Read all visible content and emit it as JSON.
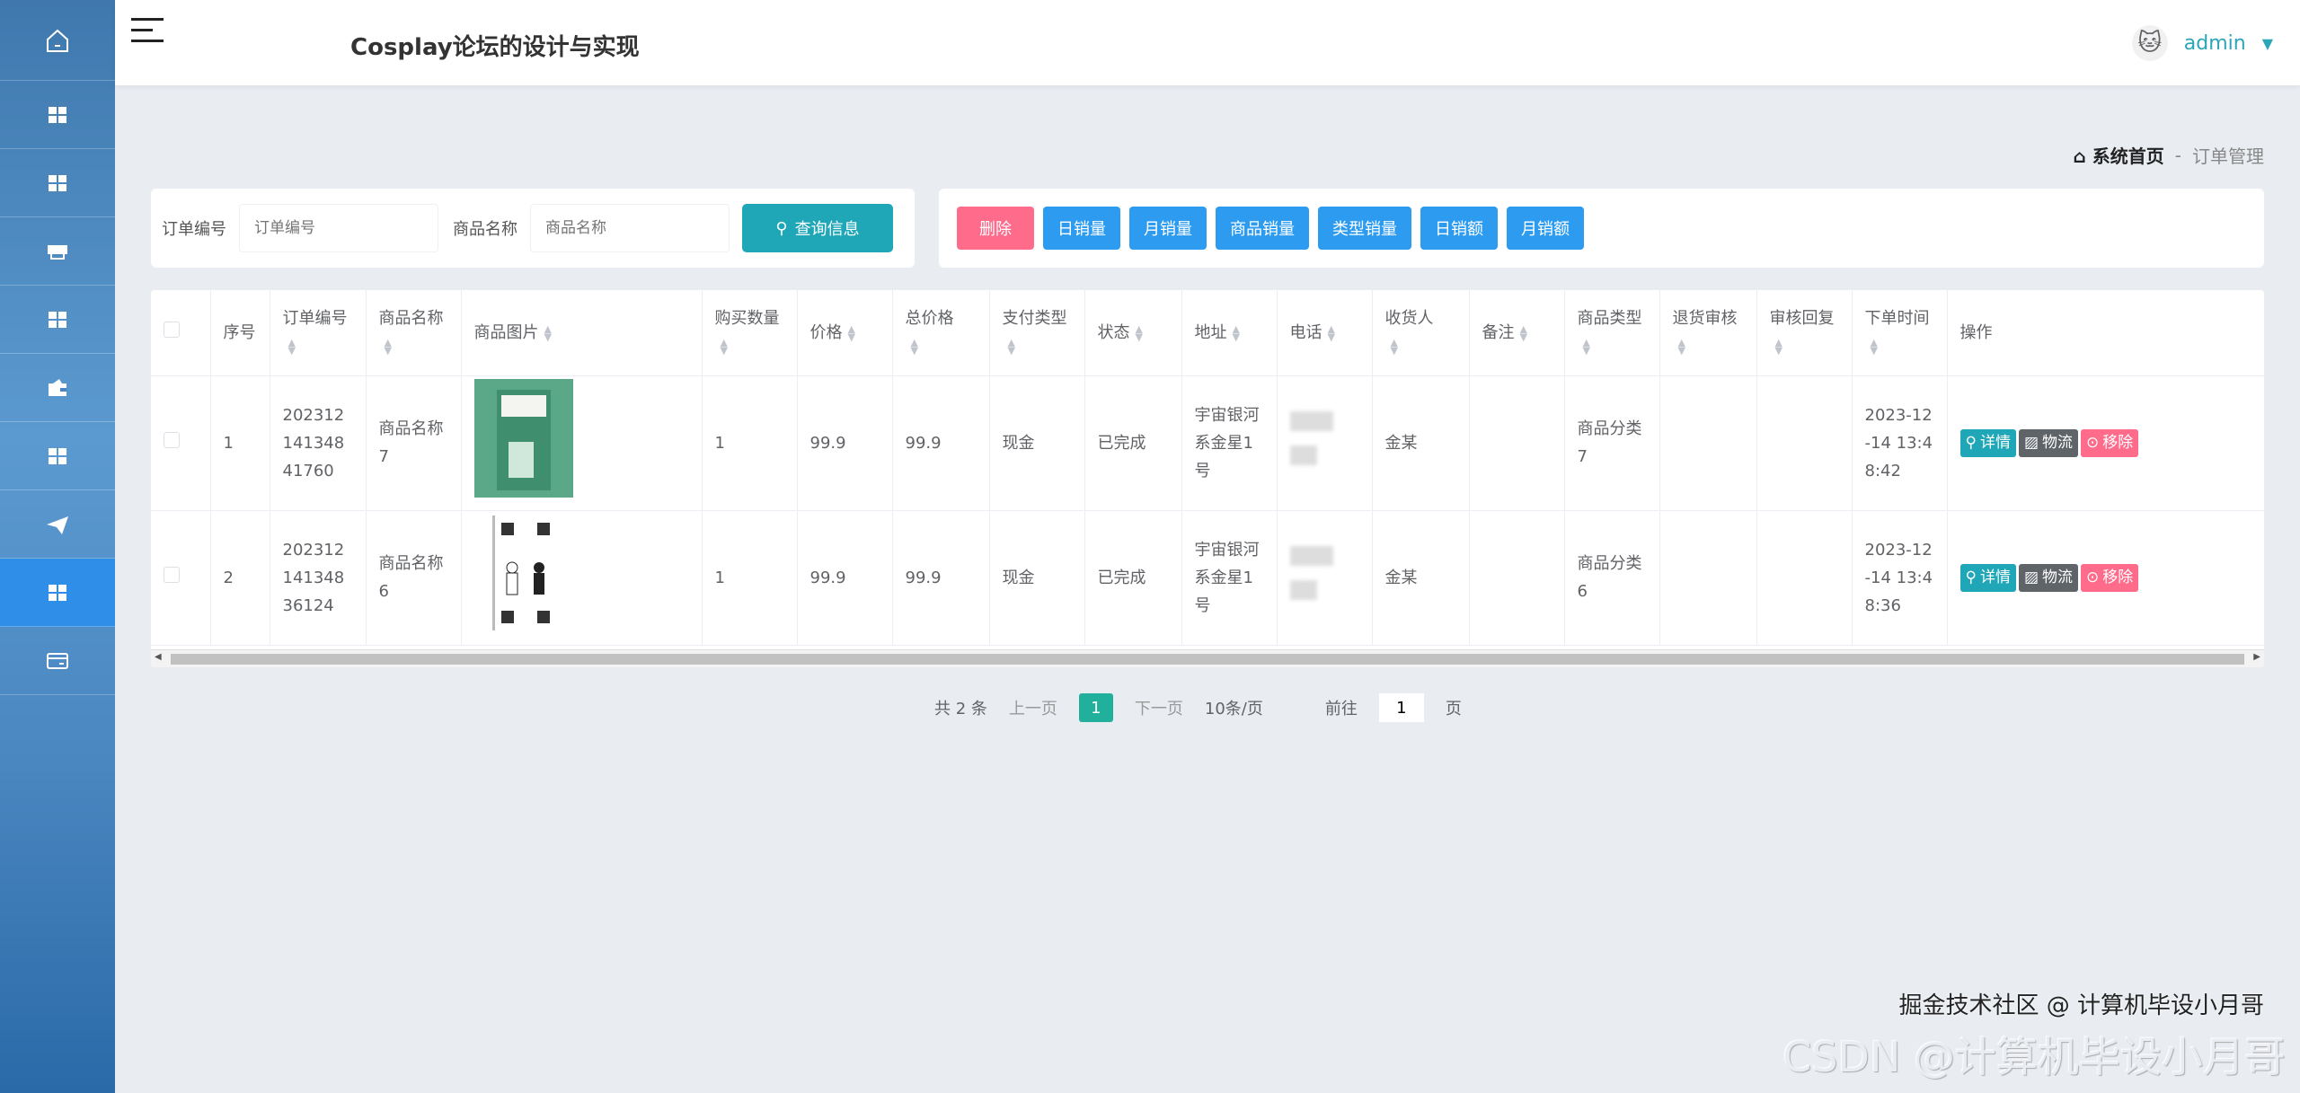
{
  "header": {
    "title": "Cosplay论坛的设计与实现",
    "user": "admin"
  },
  "sidebar": {
    "items": [
      {
        "icon": "home-icon"
      },
      {
        "icon": "grid-icon"
      },
      {
        "icon": "grid-icon"
      },
      {
        "icon": "shop-icon"
      },
      {
        "icon": "grid-icon"
      },
      {
        "icon": "wallet-icon"
      },
      {
        "icon": "grid-icon"
      },
      {
        "icon": "paper-plane-icon"
      },
      {
        "icon": "grid-icon",
        "active": true
      },
      {
        "icon": "card-icon"
      }
    ]
  },
  "breadcrumb": {
    "home": "系统首页",
    "sep": "-",
    "current": "订单管理"
  },
  "search": {
    "order_label": "订单编号",
    "order_placeholder": "订单编号",
    "name_label": "商品名称",
    "name_placeholder": "商品名称",
    "query_label": "查询信息"
  },
  "toolbar": {
    "delete": "删除",
    "buttons": [
      "日销量",
      "月销量",
      "商品销量",
      "类型销量",
      "日销额",
      "月销额"
    ]
  },
  "table": {
    "columns": [
      "序号",
      "订单编号",
      "商品名称",
      "商品图片",
      "购买数量",
      "价格",
      "总价格",
      "支付类型",
      "状态",
      "地址",
      "电话",
      "收货人",
      "备注",
      "商品类型",
      "退货审核",
      "审核回复",
      "下单时间",
      "操作"
    ],
    "rows": [
      [
        "1",
        "20231214134841760",
        "商品名称7",
        "",
        "1",
        "99.9",
        "99.9",
        "现金",
        "已完成",
        "宇宙银河系金星1号",
        "",
        "金某",
        "",
        "商品分类7",
        "",
        "",
        "2023-12-14 13:48:42"
      ],
      [
        "2",
        "20231214134836124",
        "商品名称6",
        "",
        "1",
        "99.9",
        "99.9",
        "现金",
        "已完成",
        "宇宙银河系金星1号",
        "",
        "金某",
        "",
        "商品分类6",
        "",
        "",
        "2023-12-14 13:48:36"
      ]
    ],
    "actions": {
      "detail": "详情",
      "logistics": "物流",
      "remove": "移除"
    }
  },
  "pagination": {
    "total": "共 2 条",
    "prev": "上一页",
    "current": "1",
    "next": "下一页",
    "size": "10条/页",
    "goto": "前往",
    "goto_value": "1",
    "page_unit": "页"
  },
  "watermark": {
    "csdn": "CSDN @计算机毕设小月哥",
    "juejin": "掘金技术社区 @ 计算机毕设小月哥"
  },
  "colors": {
    "primary": "#1fa7b8",
    "danger": "#ff6b8b",
    "blue": "#2d9cf0",
    "sidebar_active": "#2f8fe8"
  }
}
